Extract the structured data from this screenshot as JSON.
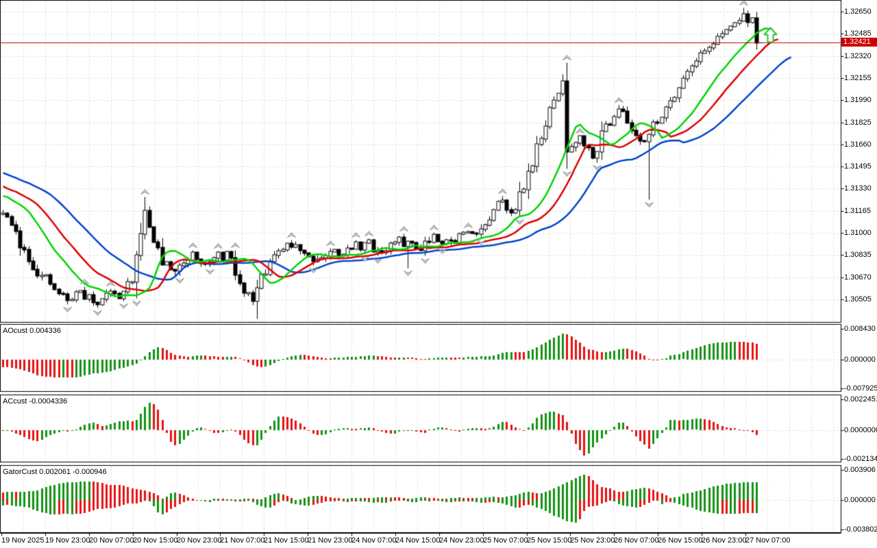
{
  "current_price_label": "1.32421",
  "panes": {
    "ao": {
      "label": "AOcust 0.004336",
      "scale": [
        "0.008430",
        "0.000000",
        "-0.007925"
      ],
      "scale_values": [
        0.00843,
        0,
        -0.007925
      ]
    },
    "ac": {
      "label": "ACcust -0.0004336",
      "scale": [
        "0.0022451",
        "0.0000000",
        "-0.0021349"
      ],
      "scale_values": [
        0.0022451,
        0,
        -0.0021349
      ]
    },
    "gator": {
      "label": "GatorCust 0.002061 -0.000946",
      "scale": [
        "0.003906",
        "0.000000",
        "-0.003802"
      ],
      "scale_values": [
        0.003906,
        0,
        -0.003802
      ]
    }
  },
  "colors": {
    "background": "#FFFFFF",
    "grid": "#D9D9D9",
    "frame": "#000000",
    "bull_body": "#FFFFFF",
    "bear_body": "#000000",
    "wick": "#000000",
    "alligator_jaw_blue": "#0045CC",
    "alligator_teeth_red": "#DE0000",
    "alligator_lips_green": "#00D400",
    "hist_up_green": "#129212",
    "hist_down_red": "#E81111",
    "price_line_red": "#C00000",
    "badge_bg": "#CC0000",
    "badge_fg": "#FFFFFF",
    "fractal_fill": "#C9CBD4",
    "fractal_stroke": "#8E9098",
    "signal_arrow_green": "#2FBF2F"
  },
  "chart_data": {
    "type": "candlestick",
    "grid": true,
    "ylim": [
      1.30337,
      1.32737
    ],
    "price_ticks": [
      1.3265,
      1.32485,
      1.3232,
      1.32155,
      1.3199,
      1.31825,
      1.3166,
      1.31495,
      1.3133,
      1.31165,
      1.31,
      1.30835,
      1.3067,
      1.30505
    ],
    "time_labels": [
      "19 Nov 2025",
      "19 Nov 23:00",
      "20 Nov 07:00",
      "20 Nov 15:00",
      "20 Nov 23:00",
      "21 Nov 07:00",
      "21 Nov 15:00",
      "21 Nov 23:00",
      "24 Nov 07:00",
      "24 Nov 15:00",
      "24 Nov 23:00",
      "25 Nov 07:00",
      "25 Nov 15:00",
      "25 Nov 23:00",
      "26 Nov 07:00",
      "26 Nov 15:00",
      "26 Nov 23:00",
      "27 Nov 07:00"
    ],
    "current_price": 1.32421,
    "visible_bars": 176,
    "history_bars": 40,
    "seed": 11,
    "close_waypoints": [
      [
        -40,
        1.318
      ],
      [
        -32,
        1.3166
      ],
      [
        -24,
        1.3152
      ],
      [
        -16,
        1.314
      ],
      [
        -8,
        1.3129
      ],
      [
        -2,
        1.3121
      ],
      [
        0,
        1.3115
      ],
      [
        3,
        1.3101
      ],
      [
        6,
        1.308
      ],
      [
        9,
        1.3068
      ],
      [
        12,
        1.3058
      ],
      [
        15,
        1.305
      ],
      [
        18,
        1.3057
      ],
      [
        21,
        1.3048
      ],
      [
        24,
        1.3056
      ],
      [
        27,
        1.3052
      ],
      [
        30,
        1.3063
      ],
      [
        32,
        1.31
      ],
      [
        33,
        1.3116
      ],
      [
        35,
        1.3094
      ],
      [
        37,
        1.3077
      ],
      [
        40,
        1.3072
      ],
      [
        44,
        1.3086
      ],
      [
        48,
        1.3078
      ],
      [
        52,
        1.3086
      ],
      [
        55,
        1.3062
      ],
      [
        58,
        1.305
      ],
      [
        60,
        1.307
      ],
      [
        64,
        1.3086
      ],
      [
        68,
        1.3092
      ],
      [
        72,
        1.308
      ],
      [
        76,
        1.3086
      ],
      [
        80,
        1.3088
      ],
      [
        84,
        1.3093
      ],
      [
        88,
        1.3086
      ],
      [
        92,
        1.3096
      ],
      [
        96,
        1.3089
      ],
      [
        100,
        1.3099
      ],
      [
        104,
        1.3094
      ],
      [
        108,
        1.3101
      ],
      [
        112,
        1.3106
      ],
      [
        116,
        1.3124
      ],
      [
        119,
        1.3117
      ],
      [
        122,
        1.3146
      ],
      [
        125,
        1.3171
      ],
      [
        128,
        1.3199
      ],
      [
        130,
        1.3213
      ],
      [
        131,
        1.3161
      ],
      [
        134,
        1.3173
      ],
      [
        137,
        1.3157
      ],
      [
        140,
        1.3181
      ],
      [
        143,
        1.3193
      ],
      [
        146,
        1.3177
      ],
      [
        149,
        1.3169
      ],
      [
        152,
        1.3183
      ],
      [
        155,
        1.3199
      ],
      [
        158,
        1.3216
      ],
      [
        161,
        1.3229
      ],
      [
        164,
        1.3239
      ],
      [
        167,
        1.3248
      ],
      [
        170,
        1.3257
      ],
      [
        172,
        1.3263
      ],
      [
        174,
        1.326
      ],
      [
        175,
        1.32421
      ]
    ],
    "wick_overrides": {
      "33": {
        "h": 1.3127
      },
      "59": {
        "l": 1.3036
      },
      "80": {
        "l": 1.3081
      },
      "94": {
        "l": 1.3074
      },
      "150": {
        "l": 1.3125
      },
      "172": {
        "h": 1.3268
      },
      "175": {
        "h": 1.3265
      }
    },
    "indicators": {
      "alligator": {
        "jaw_period": 13,
        "jaw_shift": 8,
        "teeth_period": 8,
        "teeth_shift": 5,
        "lips_period": 5,
        "lips_shift": 3
      },
      "ao": {
        "fast": 5,
        "slow": 34
      },
      "ac": {
        "smooth": 5
      },
      "gator": {},
      "fractals": {
        "wing": 2
      }
    },
    "signal_arrow": {
      "x": 1124,
      "top_y": 40
    }
  }
}
